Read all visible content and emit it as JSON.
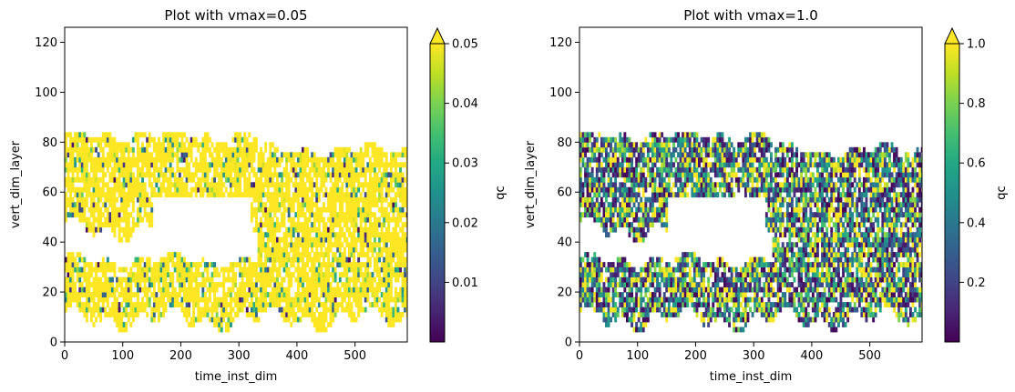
{
  "chart_data": [
    {
      "type": "heatmap",
      "title": "Plot with vmax=0.05",
      "xlabel": "time_inst_dim",
      "ylabel": "vert_dim_layer",
      "xlim": [
        0,
        590
      ],
      "ylim": [
        0,
        126
      ],
      "xticks": [
        0,
        100,
        200,
        300,
        400,
        500
      ],
      "yticks": [
        0,
        20,
        40,
        60,
        80,
        100,
        120
      ],
      "colorbar": {
        "label": "qc",
        "vmin": 0.0,
        "vmax": 0.05,
        "extend": "max",
        "ticks": [
          0.01,
          0.02,
          0.03,
          0.04,
          0.05
        ],
        "tick_labels": [
          "0.01",
          "0.02",
          "0.03",
          "0.04",
          "0.05"
        ],
        "colormap": "viridis"
      },
      "saturated_share": 0.85,
      "regions": [
        {
          "x": [
            0,
            330
          ],
          "y": [
            44,
            82
          ]
        },
        {
          "x": [
            0,
            590
          ],
          "y": [
            8,
            32
          ]
        },
        {
          "x": [
            330,
            590
          ],
          "y": [
            30,
            76
          ]
        }
      ]
    },
    {
      "type": "heatmap",
      "title": "Plot with vmax=1.0",
      "xlabel": "time_inst_dim",
      "ylabel": "vert_dim_layer",
      "xlim": [
        0,
        590
      ],
      "ylim": [
        0,
        126
      ],
      "xticks": [
        0,
        100,
        200,
        300,
        400,
        500
      ],
      "yticks": [
        0,
        20,
        40,
        60,
        80,
        100,
        120
      ],
      "colorbar": {
        "label": "qc",
        "vmin": 0.0,
        "vmax": 1.0,
        "extend": "max",
        "ticks": [
          0.2,
          0.4,
          0.6,
          0.8,
          1.0
        ],
        "tick_labels": [
          "0.2",
          "0.4",
          "0.6",
          "0.8",
          "1.0"
        ],
        "colormap": "viridis"
      },
      "saturated_share": 0.15,
      "regions": [
        {
          "x": [
            0,
            330
          ],
          "y": [
            44,
            82
          ]
        },
        {
          "x": [
            0,
            590
          ],
          "y": [
            8,
            32
          ]
        },
        {
          "x": [
            330,
            590
          ],
          "y": [
            30,
            76
          ]
        }
      ]
    }
  ]
}
